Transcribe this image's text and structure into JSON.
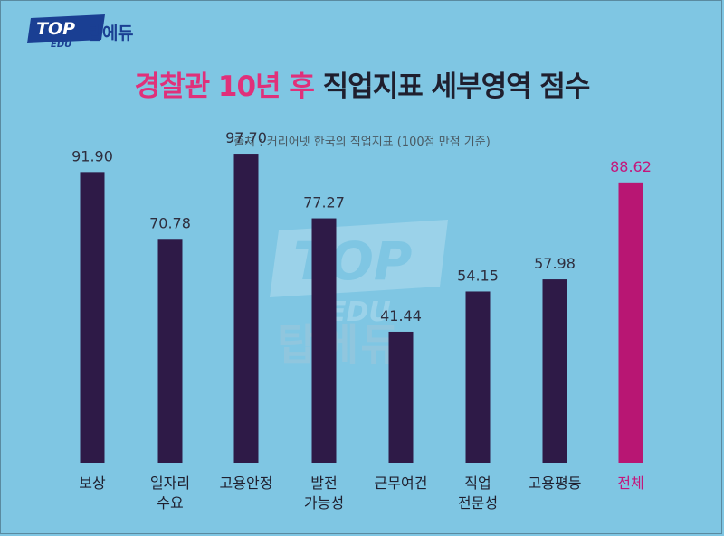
{
  "logo": {
    "mark": "TOP",
    "sub": "EDU",
    "name": "탑에듀"
  },
  "header": {
    "title_highlight": "경찰관 10년 후",
    "title_rest": "직업지표 세부영역 점수",
    "source": "출처 : 커리어넷 한국의 직업지표 (100점 만점 기준)"
  },
  "watermark": {
    "mark": "TOP",
    "sub": "EDU",
    "name": "탑에듀"
  },
  "colors": {
    "background": "#7fc6e3",
    "bar": "#2e1a47",
    "highlight": "#b81673",
    "title_accent": "#e0307a"
  },
  "chart_data": {
    "type": "bar",
    "title": "경찰관 10년 후 직업지표 세부영역 점수",
    "subtitle": "출처 : 커리어넷 한국의 직업지표 (100점 만점 기준)",
    "categories": [
      [
        "보상"
      ],
      [
        "일자리",
        "수요"
      ],
      [
        "고용안정"
      ],
      [
        "발전",
        "가능성"
      ],
      [
        "근무여건"
      ],
      [
        "직업",
        "전문성"
      ],
      [
        "고용평등"
      ],
      [
        "전체"
      ]
    ],
    "values": [
      91.9,
      70.78,
      97.7,
      77.27,
      41.44,
      54.15,
      57.98,
      88.62
    ],
    "value_labels": [
      "91.90",
      "70.78",
      "97.70",
      "77.27",
      "41.44",
      "54.15",
      "57.98",
      "88.62"
    ],
    "highlight_index": 7,
    "ylim": [
      0,
      100
    ],
    "grid": false,
    "legend": "none"
  }
}
